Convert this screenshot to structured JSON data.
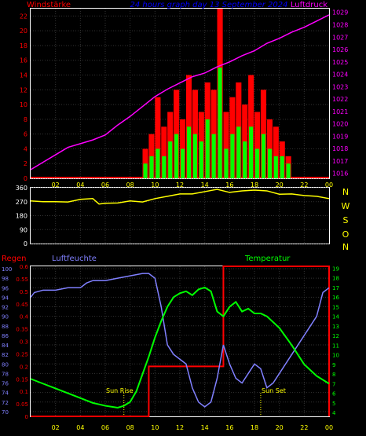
{
  "header": {
    "left_label": "Windstärke",
    "title": "24 hours graph day  13 September 2024",
    "right_label": "Luftdruck"
  },
  "compass": [
    "N",
    "W",
    "S",
    "O",
    "N"
  ],
  "bottom_labels": {
    "regen": "Regen",
    "luftfeuchte": "Luftfeuchte",
    "temperatur": "Temperatur",
    "sun_rise": "Sun Rise",
    "sun_set": "Sun Set"
  },
  "colors": {
    "wind_axis": "#ff0000",
    "pressure_axis": "#ff00ff",
    "title": "#0000ff",
    "grid": "#333333",
    "wind_max": "#ff0000",
    "wind_avg": "#00ff00",
    "pressure": "#ff00ff",
    "direction": "#ffff00",
    "compass": "#ffff00",
    "rain": "#ff0000",
    "humidity": "#8080ff",
    "temperature": "#00ff00",
    "sun_marker": "#ffff00",
    "time_labels": "#ffff00"
  },
  "chart_data": [
    {
      "type": "bar",
      "name": "wind-and-pressure",
      "x_ticks": [
        "02",
        "04",
        "06",
        "08",
        "10",
        "12",
        "14",
        "16",
        "18",
        "20",
        "22",
        "00"
      ],
      "y_left_ticks": [
        "0",
        "2",
        "4",
        "6",
        "8",
        "10",
        "12",
        "14",
        "16",
        "18",
        "20",
        "22"
      ],
      "y_right_ticks": [
        "1016",
        "1017",
        "1018",
        "1019",
        "1020",
        "1021",
        "1022",
        "1023",
        "1024",
        "1025",
        "1026",
        "1027",
        "1028",
        "1029"
      ],
      "ylim_left": [
        0,
        23
      ],
      "ylim_right": [
        1015.6,
        1029.3
      ],
      "wind_max_hours": [
        9.0,
        9.5,
        10.0,
        10.5,
        11.0,
        11.5,
        12.0,
        12.5,
        13.0,
        13.5,
        14.0,
        14.5,
        15.0,
        15.5,
        16.0,
        16.5,
        17.0,
        17.5,
        18.0,
        18.5,
        19.0,
        19.5,
        20.0,
        20.5
      ],
      "wind_max_values": [
        4,
        6,
        11,
        7,
        9,
        12,
        8,
        14,
        12,
        9,
        13,
        12,
        23,
        9,
        11,
        13,
        10,
        14,
        9,
        12,
        8,
        7,
        5,
        3
      ],
      "wind_avg_values": [
        2,
        3,
        4,
        3,
        5,
        6,
        4,
        7,
        6,
        5,
        8,
        6,
        15,
        4,
        6,
        7,
        5,
        7,
        4,
        6,
        4,
        3,
        3,
        2
      ],
      "pressure_hours": [
        0,
        1,
        2,
        3,
        4,
        5,
        6,
        7,
        8,
        9,
        10,
        11,
        12,
        13,
        14,
        15,
        16,
        17,
        18,
        19,
        20,
        21,
        22,
        23,
        24
      ],
      "pressure_values": [
        1016.3,
        1016.9,
        1017.5,
        1018.1,
        1018.4,
        1018.7,
        1019.1,
        1019.9,
        1020.6,
        1021.4,
        1022.2,
        1022.8,
        1023.3,
        1023.8,
        1024.1,
        1024.6,
        1025.0,
        1025.5,
        1025.9,
        1026.5,
        1026.9,
        1027.4,
        1027.8,
        1028.3,
        1028.8
      ]
    },
    {
      "type": "line",
      "name": "wind-direction",
      "y_ticks": [
        "0",
        "90",
        "180",
        "270",
        "360"
      ],
      "ylim": [
        0,
        360
      ],
      "x": [
        0,
        1,
        2,
        3,
        4,
        5,
        5.5,
        6,
        7,
        8,
        9,
        10,
        11,
        12,
        13,
        14,
        15,
        16,
        17,
        18,
        19,
        20,
        21,
        22,
        23,
        24
      ],
      "values": [
        275,
        270,
        270,
        268,
        285,
        290,
        255,
        260,
        262,
        275,
        268,
        290,
        305,
        320,
        320,
        335,
        350,
        330,
        340,
        345,
        340,
        318,
        320,
        310,
        305,
        290
      ]
    },
    {
      "type": "line",
      "name": "rain-humidity-temperature",
      "x_ticks": [
        "02",
        "04",
        "06",
        "08",
        "10",
        "12",
        "14",
        "16",
        "18",
        "20",
        "22",
        "00"
      ],
      "y_rain_ticks": [
        "0",
        "0.05",
        "0.1",
        "0.15",
        "0.2",
        "0.25",
        "0.3",
        "0.35",
        "0.4",
        "0.45",
        "0.5",
        "0.55",
        "0.6"
      ],
      "y_humidity_ticks": [
        "70",
        "72",
        "74",
        "76",
        "78",
        "80",
        "82",
        "84",
        "86",
        "88",
        "90",
        "92",
        "94",
        "96",
        "98",
        "100"
      ],
      "y_temp_ticks": [
        "4",
        "5",
        "6",
        "7",
        "8",
        "9",
        "10",
        "11",
        "12",
        "13",
        "14",
        "15",
        "16",
        "17",
        "18",
        "19"
      ],
      "rain_ylim": [
        0,
        0.6
      ],
      "humidity_ylim": [
        69,
        100.5
      ],
      "temp_ylim": [
        3.6,
        19.2
      ],
      "rain_hours": [
        0,
        9.5,
        9.5,
        15.5,
        15.5,
        24
      ],
      "rain_values": [
        0,
        0,
        0.2,
        0.2,
        0.6,
        0.6
      ],
      "humidity_hours": [
        0,
        0.3,
        1,
        2,
        3,
        4,
        4.5,
        5,
        6,
        7,
        8,
        9,
        9.5,
        10,
        10.5,
        11,
        11.5,
        12,
        12.5,
        13,
        13.5,
        14,
        14.5,
        15,
        15.5,
        16,
        16.5,
        17,
        17.5,
        18,
        18.5,
        19,
        19.5,
        20,
        21,
        22,
        23,
        23.5,
        24
      ],
      "humidity_values": [
        94,
        95,
        95.5,
        95.5,
        96,
        96,
        97,
        97.5,
        97.5,
        98,
        98.5,
        99,
        99,
        98,
        92,
        84,
        82,
        81,
        80,
        75,
        72,
        71,
        72,
        77,
        84,
        80,
        77,
        76,
        78,
        80,
        79,
        75,
        76,
        78,
        82,
        86,
        90,
        95,
        96
      ],
      "temp_hours": [
        0,
        1,
        2,
        3,
        4,
        5,
        6,
        7,
        7.5,
        8,
        8.5,
        9,
        9.5,
        10,
        10.5,
        11,
        11.5,
        12,
        12.5,
        13,
        13.5,
        14,
        14.5,
        15,
        15.5,
        16,
        16.5,
        17,
        17.5,
        18,
        18.5,
        19,
        20,
        21,
        22,
        23,
        24
      ],
      "temp_values": [
        7.5,
        7.0,
        6.5,
        6.0,
        5.5,
        5.0,
        4.7,
        4.5,
        4.7,
        5.1,
        6.2,
        8.0,
        9.8,
        11.8,
        13.5,
        15.0,
        16.0,
        16.4,
        16.6,
        16.2,
        16.8,
        17.0,
        16.6,
        14.5,
        14.0,
        15.0,
        15.5,
        14.5,
        14.8,
        14.3,
        14.3,
        14.0,
        12.8,
        11.0,
        9.0,
        7.8,
        7.0
      ],
      "sun_rise_hour": 7.5,
      "sun_set_hour": 18.5
    }
  ]
}
